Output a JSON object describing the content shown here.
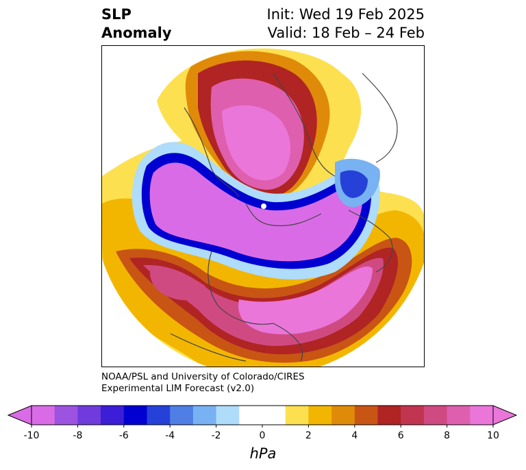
{
  "header": {
    "title_line1": "SLP",
    "title_line2": "Anomaly",
    "init_text": "Init: Wed 19 Feb 2025",
    "valid_text": "Valid: 18 Feb – 24 Feb"
  },
  "credit": {
    "line1": "NOAA/PSL and University of Colorado/CIRES",
    "line2": "Experimental LIM Forecast (v2.0)"
  },
  "colorbar": {
    "unit": "hPa",
    "ticks": [
      "-10",
      "-8",
      "-6",
      "-4",
      "-2",
      "0",
      "2",
      "4",
      "6",
      "8",
      "10"
    ],
    "colors": [
      "#d96ce6",
      "#9b53e0",
      "#6f3bdc",
      "#3b1ed6",
      "#0000d0",
      "#2541d8",
      "#4f7fe4",
      "#78b2f2",
      "#aedcfa",
      "#ffffff",
      "#ffffff",
      "#fde050",
      "#f2b600",
      "#e08a0a",
      "#c85514",
      "#b02424",
      "#c23550",
      "#d04a82",
      "#de5fae",
      "#ea76da"
    ],
    "extend_low_color": "#d96ce6",
    "extend_high_color": "#ea76da"
  },
  "map": {
    "projection": "north-polar-stereographic",
    "field": "sea-level-pressure-anomaly"
  }
}
